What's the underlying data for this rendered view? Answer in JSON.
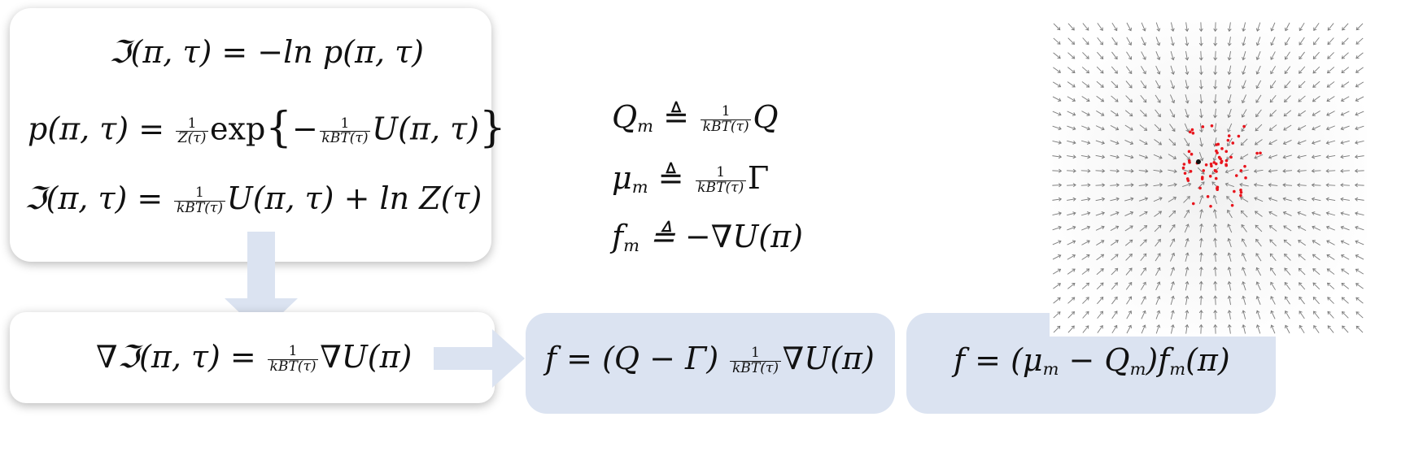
{
  "equations": {
    "info_def_lhs": "ℑ(π, τ) = −ln p(π, τ)",
    "prob_lhs": "p(π, τ) =",
    "prob_frac_num": "1",
    "prob_frac_den": "Z(τ)",
    "prob_exp": "exp",
    "prob_inner_sign": "−",
    "prob_inner_num": "1",
    "prob_inner_den": "kBT(τ)",
    "prob_inner_rest": "U(π, τ)",
    "info_alt_lhs": "ℑ(π, τ) =",
    "info_alt_num": "1",
    "info_alt_den": "kBT(τ)",
    "info_alt_rest": "U(π, τ) + ln Z(τ)",
    "grad_lhs": "∇ℑ(π, τ) =",
    "grad_num": "1",
    "grad_den": "kBT(τ)",
    "grad_rest": "∇U(π)",
    "Qm_lhs": "Q",
    "Qm_sub": "m",
    "Qm_op": "≜",
    "Qm_num": "1",
    "Qm_den": "kBT(τ)",
    "Qm_rest": "Q",
    "mu_lhs": "μ",
    "mu_sub": "m",
    "mu_op": "≜",
    "mu_num": "1",
    "mu_den": "kBT(τ)",
    "mu_rest": "Γ",
    "fm_lhs": "f",
    "fm_sub": "m",
    "fm_rhs": "≜ −∇U(π)",
    "force_lhs": "f = (Q − Γ)",
    "force_num": "1",
    "force_den": "kBT(τ)",
    "force_rest": "∇U(π)",
    "force_m_a": "f = (μ",
    "force_m_a_sub": "m",
    "force_m_b": " − Q",
    "force_m_b_sub": "m",
    "force_m_c": ")f",
    "force_m_c_sub": "m",
    "force_m_d": "(π)"
  },
  "colors": {
    "card_blue": "#dbe3f1",
    "arrow_blue": "#dbe3f1",
    "field_arrow": "#7a7a7a",
    "particles": "#e8141c",
    "center_particle": "#111111"
  },
  "icons": [
    "down-arrow-icon",
    "right-arrow-icon"
  ]
}
